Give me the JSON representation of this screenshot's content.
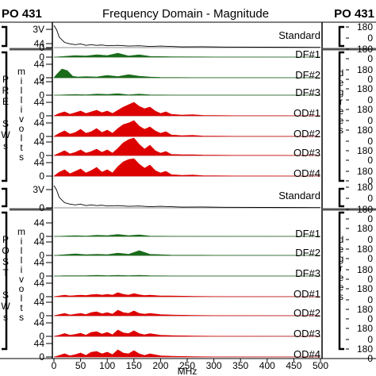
{
  "chart_data": {
    "type": "area",
    "title": "Frequency Domain - Magnitude",
    "left_tag": "PO 431",
    "right_tag": "PO 431",
    "xlabel": "MHz",
    "x_ticks": [
      0,
      50,
      100,
      150,
      200,
      250,
      300,
      350,
      400,
      450,
      500
    ],
    "xlim": [
      0,
      500
    ],
    "left_axis_label": "millivolts",
    "right_axis_label": "degrees",
    "right_tick_values": [
      "180",
      "0",
      "180"
    ],
    "panels": [
      {
        "group": "PRE",
        "group_sub": "SWs",
        "traces": [
          {
            "name": "Standard",
            "color": "#000000",
            "scale_top": "3V",
            "scale_base": "0",
            "fill": false,
            "x": [
              0,
              5,
              10,
              20,
              30,
              40,
              50,
              60,
              70,
              80,
              90,
              100,
              120,
              140,
              160,
              180,
              200,
              240,
              280,
              320,
              400,
              500
            ],
            "y": [
              3.0,
              2.4,
              1.4,
              0.7,
              0.5,
              0.4,
              0.5,
              0.3,
              0.4,
              0.3,
              0.35,
              0.25,
              0.3,
              0.2,
              0.25,
              0.15,
              0.2,
              0.1,
              0.12,
              0.08,
              0.05,
              0.03
            ]
          },
          {
            "name": "DF#1",
            "color": "#1a6b1a",
            "scale_top": "44",
            "scale_base": "0",
            "fill": true,
            "x": [
              0,
              20,
              40,
              60,
              80,
              100,
              120,
              140,
              160,
              180,
              220,
              300,
              500
            ],
            "y": [
              0,
              2,
              4,
              3,
              6,
              4,
              10,
              3,
              6,
              2,
              1,
              0.5,
              0
            ]
          },
          {
            "name": "DF#2",
            "color": "#1a6b1a",
            "scale_top": "44",
            "scale_base": "0",
            "fill": true,
            "x": [
              0,
              5,
              15,
              25,
              35,
              45,
              60,
              80,
              100,
              120,
              140,
              160,
              180,
              200,
              260,
              500
            ],
            "y": [
              0,
              8,
              22,
              18,
              4,
              2,
              3,
              2,
              6,
              3,
              8,
              4,
              2,
              1,
              0.5,
              0
            ]
          },
          {
            "name": "DF#3",
            "color": "#1a6b1a",
            "scale_top": "44",
            "scale_base": "0",
            "fill": true,
            "x": [
              0,
              20,
              40,
              60,
              80,
              100,
              120,
              140,
              160,
              180,
              220,
              300,
              500
            ],
            "y": [
              0,
              1,
              2,
              1,
              3,
              2,
              4,
              1,
              3,
              1,
              0.5,
              0.3,
              0
            ]
          },
          {
            "name": "OD#1",
            "color": "#dd0000",
            "scale_top": "44",
            "scale_base": "0",
            "fill": true,
            "x": [
              0,
              10,
              20,
              30,
              40,
              50,
              60,
              70,
              80,
              90,
              100,
              110,
              120,
              130,
              140,
              150,
              160,
              170,
              180,
              190,
              200,
              210,
              220,
              240,
              260,
              280,
              300,
              340,
              400,
              500
            ],
            "y": [
              0,
              6,
              10,
              4,
              8,
              12,
              6,
              10,
              14,
              8,
              12,
              6,
              14,
              22,
              28,
              34,
              24,
              18,
              22,
              12,
              6,
              10,
              4,
              2,
              3,
              1,
              1,
              0.5,
              0.3,
              0
            ]
          },
          {
            "name": "OD#2",
            "color": "#dd0000",
            "scale_top": "44",
            "scale_base": "0",
            "fill": true,
            "x": [
              0,
              10,
              20,
              30,
              40,
              50,
              60,
              70,
              80,
              90,
              100,
              110,
              120,
              130,
              140,
              150,
              160,
              170,
              180,
              190,
              200,
              210,
              220,
              240,
              260,
              280,
              300,
              340,
              400,
              500
            ],
            "y": [
              0,
              8,
              14,
              6,
              10,
              18,
              8,
              12,
              20,
              10,
              16,
              8,
              20,
              30,
              34,
              40,
              26,
              18,
              24,
              14,
              8,
              12,
              4,
              2,
              3,
              1,
              1,
              0.5,
              0.3,
              0
            ]
          },
          {
            "name": "OD#3",
            "color": "#dd0000",
            "scale_top": "44",
            "scale_base": "0",
            "fill": true,
            "x": [
              0,
              10,
              20,
              30,
              40,
              50,
              60,
              70,
              80,
              90,
              100,
              110,
              120,
              130,
              140,
              150,
              160,
              170,
              180,
              190,
              200,
              210,
              220,
              240,
              260,
              280,
              300,
              340,
              400,
              500
            ],
            "y": [
              0,
              6,
              12,
              4,
              8,
              14,
              6,
              10,
              16,
              8,
              14,
              6,
              18,
              32,
              40,
              44,
              28,
              16,
              26,
              12,
              6,
              10,
              3,
              2,
              2,
              1,
              1,
              0.5,
              0.3,
              0
            ]
          },
          {
            "name": "OD#4",
            "color": "#dd0000",
            "scale_top": "44",
            "scale_base": "0",
            "fill": true,
            "x": [
              0,
              10,
              20,
              30,
              40,
              50,
              60,
              70,
              80,
              90,
              100,
              110,
              120,
              130,
              140,
              150,
              160,
              170,
              180,
              190,
              200,
              210,
              220,
              240,
              260,
              280,
              300,
              340,
              400,
              500
            ],
            "y": [
              0,
              10,
              16,
              6,
              12,
              18,
              8,
              14,
              22,
              10,
              16,
              8,
              24,
              36,
              42,
              44,
              30,
              20,
              28,
              14,
              8,
              12,
              4,
              2,
              3,
              1,
              1,
              0.5,
              0.3,
              0
            ]
          }
        ]
      },
      {
        "group": "POST",
        "group_sub": "SWs",
        "traces": [
          {
            "name": "Standard",
            "color": "#000000",
            "scale_top": "3V",
            "scale_base": "0",
            "fill": false,
            "x": [
              0,
              5,
              10,
              20,
              30,
              40,
              50,
              60,
              70,
              80,
              90,
              100,
              120,
              140,
              160,
              180,
              200,
              240,
              280,
              320,
              400,
              500
            ],
            "y": [
              3.0,
              2.4,
              1.4,
              0.7,
              0.5,
              0.4,
              0.5,
              0.3,
              0.4,
              0.3,
              0.35,
              0.25,
              0.3,
              0.2,
              0.25,
              0.15,
              0.2,
              0.1,
              0.12,
              0.08,
              0.05,
              0.03
            ]
          },
          {
            "name": "DF#1",
            "color": "#1a6b1a",
            "scale_top": "44",
            "scale_base": "0",
            "fill": true,
            "x": [
              0,
              20,
              40,
              60,
              80,
              100,
              120,
              140,
              160,
              180,
              220,
              300,
              500
            ],
            "y": [
              0,
              1,
              2,
              1,
              3,
              2,
              5,
              2,
              4,
              1,
              0.5,
              0.3,
              0
            ]
          },
          {
            "name": "DF#2",
            "color": "#1a6b1a",
            "scale_top": "44",
            "scale_base": "0",
            "fill": true,
            "x": [
              0,
              20,
              40,
              60,
              80,
              100,
              120,
              140,
              160,
              180,
              220,
              300,
              500
            ],
            "y": [
              0,
              2,
              4,
              2,
              3,
              2,
              6,
              3,
              12,
              3,
              1,
              0.5,
              0
            ]
          },
          {
            "name": "DF#3",
            "color": "#1a6b1a",
            "scale_top": "44",
            "scale_base": "0",
            "fill": true,
            "x": [
              0,
              20,
              40,
              60,
              80,
              100,
              120,
              140,
              160,
              180,
              220,
              300,
              500
            ],
            "y": [
              0,
              1,
              1,
              1,
              2,
              1,
              2,
              1,
              2,
              1,
              0.5,
              0.2,
              0
            ]
          },
          {
            "name": "OD#1",
            "color": "#dd0000",
            "scale_top": "44",
            "scale_base": "0",
            "fill": true,
            "x": [
              0,
              10,
              20,
              30,
              40,
              50,
              60,
              70,
              80,
              90,
              100,
              110,
              120,
              130,
              140,
              150,
              160,
              170,
              180,
              200,
              220,
              260,
              300,
              400,
              500
            ],
            "y": [
              0,
              2,
              4,
              2,
              3,
              4,
              3,
              5,
              6,
              4,
              6,
              4,
              10,
              6,
              4,
              8,
              5,
              3,
              4,
              2,
              2,
              1,
              0.5,
              0.2,
              0
            ]
          },
          {
            "name": "OD#2",
            "color": "#dd0000",
            "scale_top": "44",
            "scale_base": "0",
            "fill": true,
            "x": [
              0,
              10,
              20,
              30,
              40,
              50,
              60,
              70,
              80,
              90,
              100,
              110,
              120,
              130,
              140,
              150,
              160,
              170,
              180,
              200,
              220,
              260,
              300,
              400,
              500
            ],
            "y": [
              0,
              3,
              6,
              2,
              4,
              6,
              3,
              8,
              10,
              5,
              8,
              4,
              14,
              8,
              6,
              12,
              6,
              4,
              6,
              3,
              2,
              1,
              0.5,
              0.2,
              0
            ]
          },
          {
            "name": "OD#3",
            "color": "#dd0000",
            "scale_top": "44",
            "scale_base": "0",
            "fill": true,
            "x": [
              0,
              10,
              20,
              30,
              40,
              50,
              60,
              70,
              80,
              90,
              100,
              110,
              120,
              130,
              140,
              150,
              160,
              170,
              180,
              200,
              220,
              260,
              300,
              400,
              500
            ],
            "y": [
              0,
              3,
              7,
              3,
              5,
              8,
              3,
              10,
              12,
              6,
              10,
              4,
              16,
              9,
              7,
              14,
              7,
              4,
              7,
              3,
              2,
              1,
              0.5,
              0.2,
              0
            ]
          },
          {
            "name": "OD#4",
            "color": "#dd0000",
            "scale_top": "44",
            "scale_base": "0",
            "fill": true,
            "x": [
              0,
              10,
              20,
              30,
              40,
              50,
              60,
              70,
              80,
              90,
              100,
              110,
              120,
              130,
              140,
              150,
              160,
              170,
              180,
              200,
              220,
              260,
              300,
              400,
              500
            ],
            "y": [
              0,
              4,
              8,
              3,
              6,
              10,
              4,
              12,
              14,
              8,
              12,
              6,
              18,
              10,
              8,
              16,
              8,
              4,
              8,
              3,
              2,
              1,
              0.5,
              0.2,
              0
            ]
          }
        ]
      }
    ]
  }
}
